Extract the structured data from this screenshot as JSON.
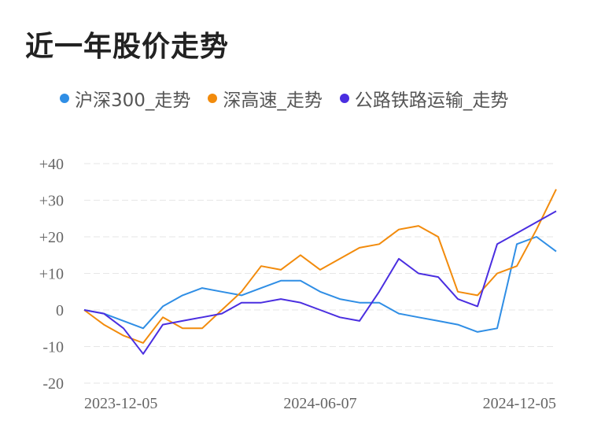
{
  "title": "近一年股价走势",
  "chart_data": {
    "type": "line",
    "title": "近一年股价走势",
    "xlabel": "",
    "ylabel": "",
    "x_ticks": [
      "2023-12-05",
      "2024-06-07",
      "2024-12-05"
    ],
    "y_ticks": [
      "+40",
      "+30",
      "+20",
      "+10",
      "0",
      "-10",
      "-20"
    ],
    "ylim": [
      -20,
      40
    ],
    "grid": true,
    "legend_position": "top",
    "x": [
      "2023-12-05",
      "2023-12-20",
      "2024-01-05",
      "2024-01-22",
      "2024-02-07",
      "2024-02-26",
      "2024-03-12",
      "2024-03-27",
      "2024-04-11",
      "2024-04-26",
      "2024-05-14",
      "2024-05-29",
      "2024-06-07",
      "2024-06-21",
      "2024-07-08",
      "2024-07-23",
      "2024-08-07",
      "2024-08-22",
      "2024-09-06",
      "2024-09-23",
      "2024-10-08",
      "2024-10-23",
      "2024-11-07",
      "2024-11-21",
      "2024-12-05"
    ],
    "series": [
      {
        "name": "沪深300_走势",
        "color": "#2f8ee5",
        "values": [
          0,
          -1,
          -3,
          -5,
          1,
          4,
          6,
          5,
          4,
          6,
          8,
          8,
          5,
          3,
          2,
          2,
          -1,
          -2,
          -3,
          -4,
          -6,
          -5,
          18,
          20,
          16
        ]
      },
      {
        "name": "深高速_走势",
        "color": "#f28b0c",
        "values": [
          0,
          -4,
          -7,
          -9,
          -2,
          -5,
          -5,
          0,
          5,
          12,
          11,
          15,
          11,
          14,
          17,
          18,
          22,
          23,
          20,
          5,
          4,
          10,
          12,
          22,
          33
        ]
      },
      {
        "name": "公路铁路运输_走势",
        "color": "#4a2ee0",
        "values": [
          0,
          -1,
          -5,
          -12,
          -4,
          -3,
          -2,
          -1,
          2,
          2,
          3,
          2,
          0,
          -2,
          -3,
          5,
          14,
          10,
          9,
          3,
          1,
          18,
          21,
          24,
          27
        ]
      }
    ]
  }
}
